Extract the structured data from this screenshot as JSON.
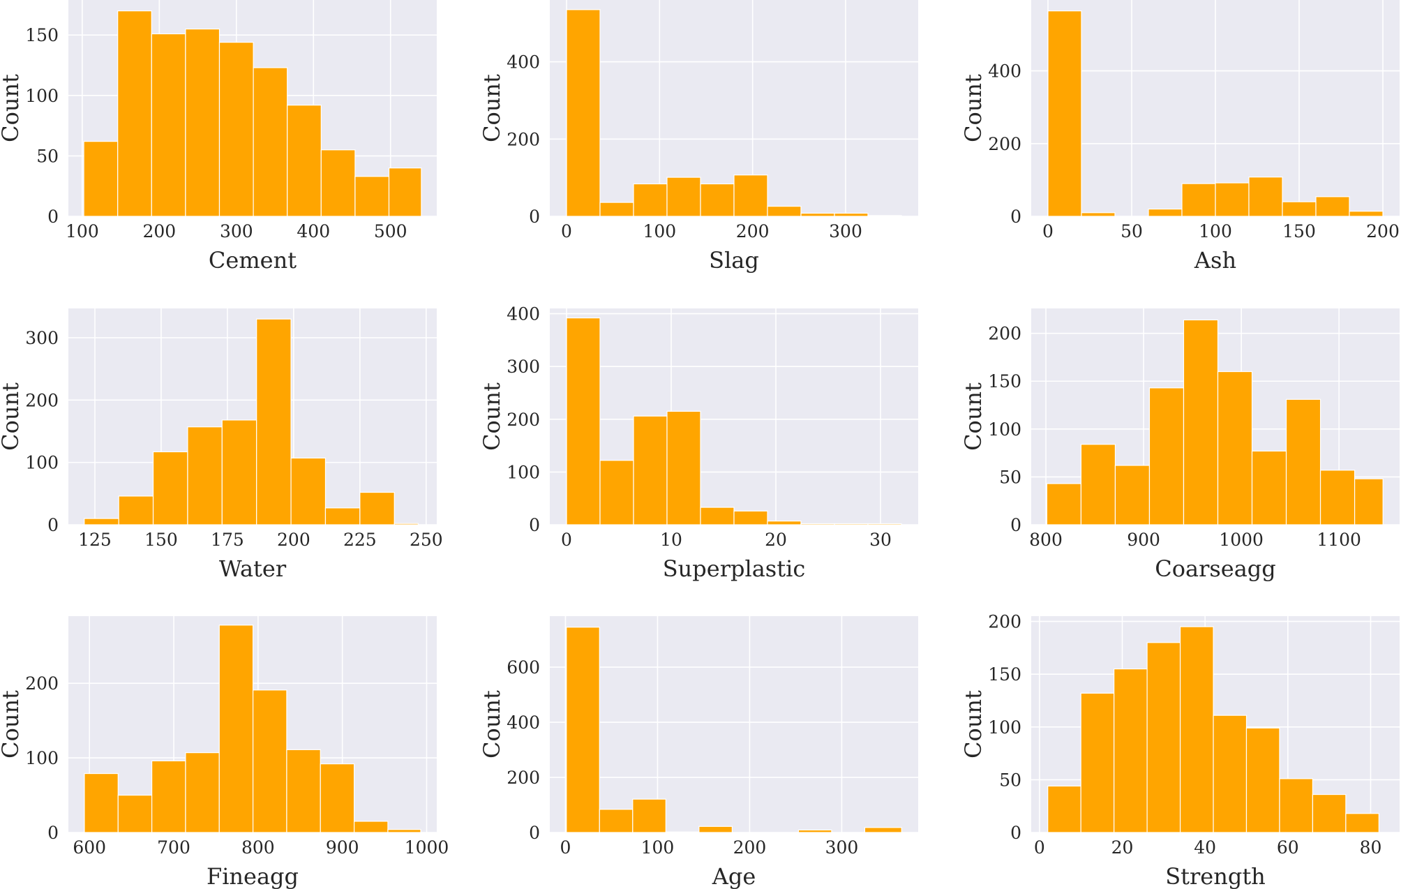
{
  "bar_color": "#FFA500",
  "panel_bg": "#EAEAF2",
  "grid_color": "#FFFFFF",
  "chart_data": [
    {
      "type": "bar",
      "title": "",
      "xlabel": "Cement",
      "ylabel": "Count",
      "bin_edges": [
        102,
        146,
        190,
        234,
        278,
        322,
        366,
        410,
        454,
        498,
        540
      ],
      "values": [
        62,
        170,
        151,
        155,
        144,
        123,
        92,
        55,
        33,
        40
      ],
      "xlim": [
        82,
        560
      ],
      "ylim": [
        0,
        179
      ],
      "xticks": [
        100,
        200,
        300,
        400,
        500
      ],
      "yticks": [
        0,
        50,
        100,
        150
      ]
    },
    {
      "type": "bar",
      "title": "",
      "xlabel": "Slag",
      "ylabel": "Count",
      "bin_edges": [
        0,
        36,
        72,
        108,
        144,
        180,
        216,
        252,
        288,
        324,
        360
      ],
      "values": [
        535,
        36,
        84,
        101,
        84,
        107,
        26,
        8,
        8,
        2
      ],
      "xlim": [
        -18,
        378
      ],
      "ylim": [
        0,
        560
      ],
      "xticks": [
        0,
        100,
        200,
        300
      ],
      "yticks": [
        0,
        200,
        400
      ]
    },
    {
      "type": "bar",
      "title": "",
      "xlabel": "Ash",
      "ylabel": "Count",
      "bin_edges": [
        0,
        20,
        40,
        60,
        80,
        100,
        120,
        140,
        160,
        180,
        200
      ],
      "values": [
        565,
        10,
        0,
        20,
        90,
        92,
        108,
        40,
        54,
        14
      ],
      "xlim": [
        -10,
        210
      ],
      "ylim": [
        0,
        595
      ],
      "xticks": [
        0,
        50,
        100,
        150,
        200
      ],
      "yticks": [
        0,
        200,
        400
      ]
    },
    {
      "type": "bar",
      "title": "",
      "xlabel": "Water",
      "ylabel": "Count",
      "bin_edges": [
        121,
        134,
        147,
        160,
        173,
        186,
        199,
        212,
        225,
        238,
        247
      ],
      "values": [
        10,
        46,
        117,
        157,
        168,
        330,
        107,
        27,
        52,
        2
      ],
      "xlim": [
        115,
        254
      ],
      "ylim": [
        0,
        347
      ],
      "xticks": [
        125,
        150,
        175,
        200,
        225,
        250
      ],
      "yticks": [
        0,
        100,
        200,
        300
      ]
    },
    {
      "type": "bar",
      "title": "",
      "xlabel": "Superplastic",
      "ylabel": "Count",
      "bin_edges": [
        0,
        3.2,
        6.4,
        9.6,
        12.8,
        16,
        19.2,
        22.4,
        25.6,
        28.8,
        32
      ],
      "values": [
        392,
        122,
        206,
        215,
        33,
        26,
        7,
        2,
        2,
        2
      ],
      "xlim": [
        -1.6,
        33.6
      ],
      "ylim": [
        0,
        410
      ],
      "xticks": [
        0,
        10,
        20,
        30
      ],
      "yticks": [
        0,
        100,
        200,
        300,
        400
      ]
    },
    {
      "type": "bar",
      "title": "",
      "xlabel": "Coarseagg",
      "ylabel": "Count",
      "bin_edges": [
        801,
        836,
        871,
        906,
        941,
        976,
        1011,
        1046,
        1081,
        1116,
        1145
      ],
      "values": [
        43,
        84,
        62,
        143,
        214,
        160,
        77,
        131,
        57,
        48
      ],
      "xlim": [
        785,
        1162
      ],
      "ylim": [
        0,
        226
      ],
      "xticks": [
        800,
        900,
        1000,
        1100
      ],
      "yticks": [
        0,
        50,
        100,
        150,
        200
      ]
    },
    {
      "type": "bar",
      "title": "",
      "xlabel": "Fineagg",
      "ylabel": "Count",
      "bin_edges": [
        594,
        634,
        674,
        714,
        754,
        794,
        834,
        874,
        914,
        954,
        993
      ],
      "values": [
        79,
        50,
        96,
        107,
        278,
        191,
        111,
        92,
        15,
        4
      ],
      "xlim": [
        575,
        1012
      ],
      "ylim": [
        0,
        290
      ],
      "xticks": [
        600,
        700,
        800,
        900,
        1000
      ],
      "yticks": [
        0,
        100,
        200
      ]
    },
    {
      "type": "bar",
      "title": "",
      "xlabel": "Age",
      "ylabel": "Count",
      "bin_edges": [
        1,
        37,
        73,
        109,
        145,
        181,
        217,
        253,
        289,
        325,
        365
      ],
      "values": [
        745,
        84,
        121,
        2,
        22,
        0,
        0,
        9,
        0,
        18
      ],
      "xlim": [
        -17,
        383
      ],
      "ylim": [
        0,
        785
      ],
      "xticks": [
        0,
        100,
        200,
        300
      ],
      "yticks": [
        0,
        200,
        400,
        600
      ]
    },
    {
      "type": "bar",
      "title": "",
      "xlabel": "Strength",
      "ylabel": "Count",
      "bin_edges": [
        2,
        10,
        18,
        26,
        34,
        42,
        50,
        58,
        66,
        74,
        82
      ],
      "values": [
        44,
        132,
        155,
        180,
        195,
        111,
        99,
        51,
        36,
        18
      ],
      "xlim": [
        -2,
        87
      ],
      "ylim": [
        0,
        205
      ],
      "xticks": [
        0,
        20,
        40,
        60,
        80
      ],
      "yticks": [
        0,
        50,
        100,
        150,
        200
      ]
    }
  ]
}
